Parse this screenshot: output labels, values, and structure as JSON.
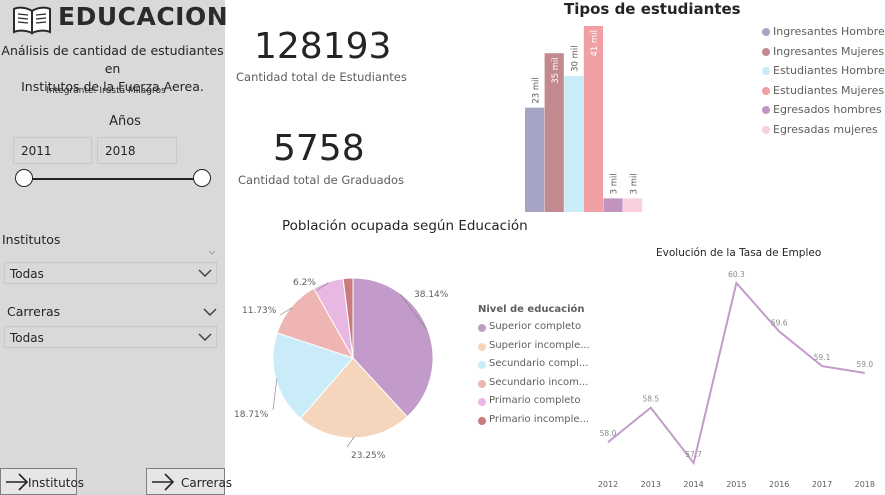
{
  "sidebar": {
    "title": "EDUCACION",
    "subtitle_line1": "Análisis de cantidad de estudiantes en",
    "subtitle_line2": "Institutos de la Fuerza Aerea.",
    "member": "Integrante: Irusta Milagros",
    "years_title": "Años",
    "year_from": "2011",
    "year_to": "2018",
    "institutos_title": "Institutos",
    "institutos_value": "Todas",
    "carreras_title": "Carreras",
    "carreras_value": "Todas",
    "nav_institutos": "Institutos",
    "nav_carreras": "Carreras"
  },
  "cards": {
    "students_value": "128193",
    "students_label": "Cantidad total de Estudiantes",
    "graduates_value": "5758",
    "graduates_label": "Cantidad total de Graduados"
  },
  "chart_data": [
    {
      "type": "bar",
      "title": "Tipos de estudiantes",
      "legend_position": "right",
      "series": [
        {
          "name": "Ingresantes Hombres",
          "value": 23000,
          "label": "23 mil",
          "color": "#a5a4c4"
        },
        {
          "name": "Ingresantes Mujeres",
          "value": 35000,
          "label": "35 mil",
          "color": "#c28a8e"
        },
        {
          "name": "Estudiantes Hombres",
          "value": 30000,
          "label": "30 mil",
          "color": "#c9ecf8"
        },
        {
          "name": "Estudiantes Mujeres",
          "value": 41000,
          "label": "41 mil",
          "color": "#f0a0a4"
        },
        {
          "name": "Egresados hombres",
          "value": 3000,
          "label": "3 mil",
          "color": "#c393c0"
        },
        {
          "name": "Egresadas mujeres",
          "value": 3000,
          "label": "3 mil",
          "color": "#fad0dc"
        }
      ]
    },
    {
      "type": "pie",
      "title": "Población ocupada según Educación",
      "legend_title": "Nivel de educación",
      "slices": [
        {
          "name": "Superior completo",
          "legend": "Superior completo",
          "value": 38.14,
          "label": "38.14%",
          "color": "#c39bcb"
        },
        {
          "name": "Superior incompleto",
          "legend": "Superior incomple...",
          "value": 23.25,
          "label": "23.25%",
          "color": "#f5d5bc"
        },
        {
          "name": "Secundario completo",
          "legend": "Secundario compl...",
          "value": 18.71,
          "label": "18.71%",
          "color": "#c9ecf8"
        },
        {
          "name": "Secundario incompleto",
          "legend": "Secundario incom...",
          "value": 11.73,
          "label": "11.73%",
          "color": "#efb4b4"
        },
        {
          "name": "Primario completo",
          "legend": "Primario completo",
          "value": 6.2,
          "label": "6.2%",
          "color": "#e8b8e2"
        },
        {
          "name": "Primario incompleto",
          "legend": "Primario incomple...",
          "value": 1.97,
          "label": "",
          "color": "#c97b7e"
        }
      ]
    },
    {
      "type": "line",
      "title": "Evolución de la Tasa de Empleo",
      "color": "#c39bcb",
      "x": [
        "2012",
        "2013",
        "2014",
        "2015",
        "2016",
        "2017",
        "2018"
      ],
      "y": [
        58.0,
        58.5,
        57.7,
        60.3,
        59.6,
        59.1,
        59.0
      ],
      "labels": [
        "58.0",
        "58.5",
        "57.7",
        "60.3",
        "59.6",
        "59.1",
        "59.0"
      ],
      "ylim": [
        57.7,
        60.3
      ]
    }
  ]
}
